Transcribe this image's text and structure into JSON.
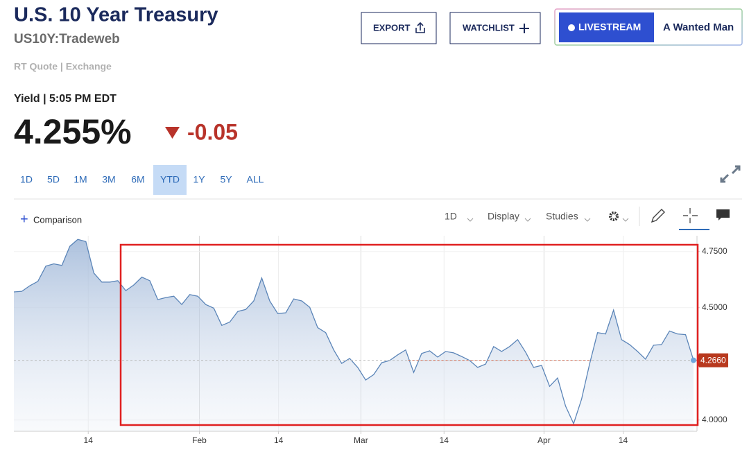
{
  "header": {
    "title": "U.S. 10 Year Treasury",
    "symbol": "US10Y:Tradeweb",
    "source": "RT Quote | Exchange"
  },
  "quote": {
    "label": "Yield | 5:05 PM EDT",
    "price": "4.255%",
    "change": "-0.05"
  },
  "buttons": {
    "export": "EXPORT",
    "watchlist": "WATCHLIST",
    "livestream": "LIVESTREAM",
    "now_playing": "A Wanted Man"
  },
  "ranges": [
    "1D",
    "5D",
    "1M",
    "3M",
    "6M",
    "YTD",
    "1Y",
    "5Y",
    "ALL"
  ],
  "selected_range": "YTD",
  "toolbar": {
    "comparison": "Comparison",
    "interval": "1D",
    "display": "Display",
    "studies": "Studies"
  },
  "chart_data": {
    "type": "line",
    "series": [
      {
        "name": "US10Y",
        "color": "#5b85b8",
        "values": [
          4.57,
          4.573,
          4.598,
          4.617,
          4.685,
          4.695,
          4.688,
          4.773,
          4.804,
          4.794,
          4.654,
          4.614,
          4.614,
          4.62,
          4.576,
          4.601,
          4.636,
          4.62,
          4.536,
          4.545,
          4.551,
          4.514,
          4.558,
          4.551,
          4.514,
          4.498,
          4.421,
          4.436,
          4.483,
          4.492,
          4.53,
          4.632,
          4.53,
          4.474,
          4.477,
          4.539,
          4.53,
          4.502,
          4.411,
          4.389,
          4.312,
          4.252,
          4.274,
          4.234,
          4.178,
          4.202,
          4.255,
          4.265,
          4.29,
          4.312,
          4.212,
          4.296,
          4.308,
          4.28,
          4.305,
          4.299,
          4.283,
          4.265,
          4.234,
          4.249,
          4.327,
          4.305,
          4.327,
          4.358,
          4.302,
          4.234,
          4.243,
          4.15,
          4.187,
          4.062,
          3.984,
          4.093,
          4.249,
          4.389,
          4.383,
          4.489,
          4.358,
          4.336,
          4.305,
          4.271,
          4.333,
          4.336,
          4.396,
          4.383,
          4.38,
          4.266
        ]
      }
    ],
    "last_value": {
      "value": 4.266,
      "label": "4.2660"
    },
    "xlim": [
      0,
      85
    ],
    "xticks": [
      {
        "value": 9.3,
        "label": "14"
      },
      {
        "value": 23.2,
        "label": "Feb"
      },
      {
        "value": 33.1,
        "label": "14"
      },
      {
        "value": 43.4,
        "label": "Mar"
      },
      {
        "value": 53.8,
        "label": "14"
      },
      {
        "value": 66.3,
        "label": "Apr"
      },
      {
        "value": 76.2,
        "label": "14"
      }
    ],
    "ylim": [
      3.95,
      4.82
    ],
    "yticks": [
      {
        "value": 4.75,
        "label": "4.7500"
      },
      {
        "value": 4.5,
        "label": "4.5000"
      },
      {
        "value": 4.0,
        "label": "4.0000"
      }
    ],
    "grid": true
  }
}
